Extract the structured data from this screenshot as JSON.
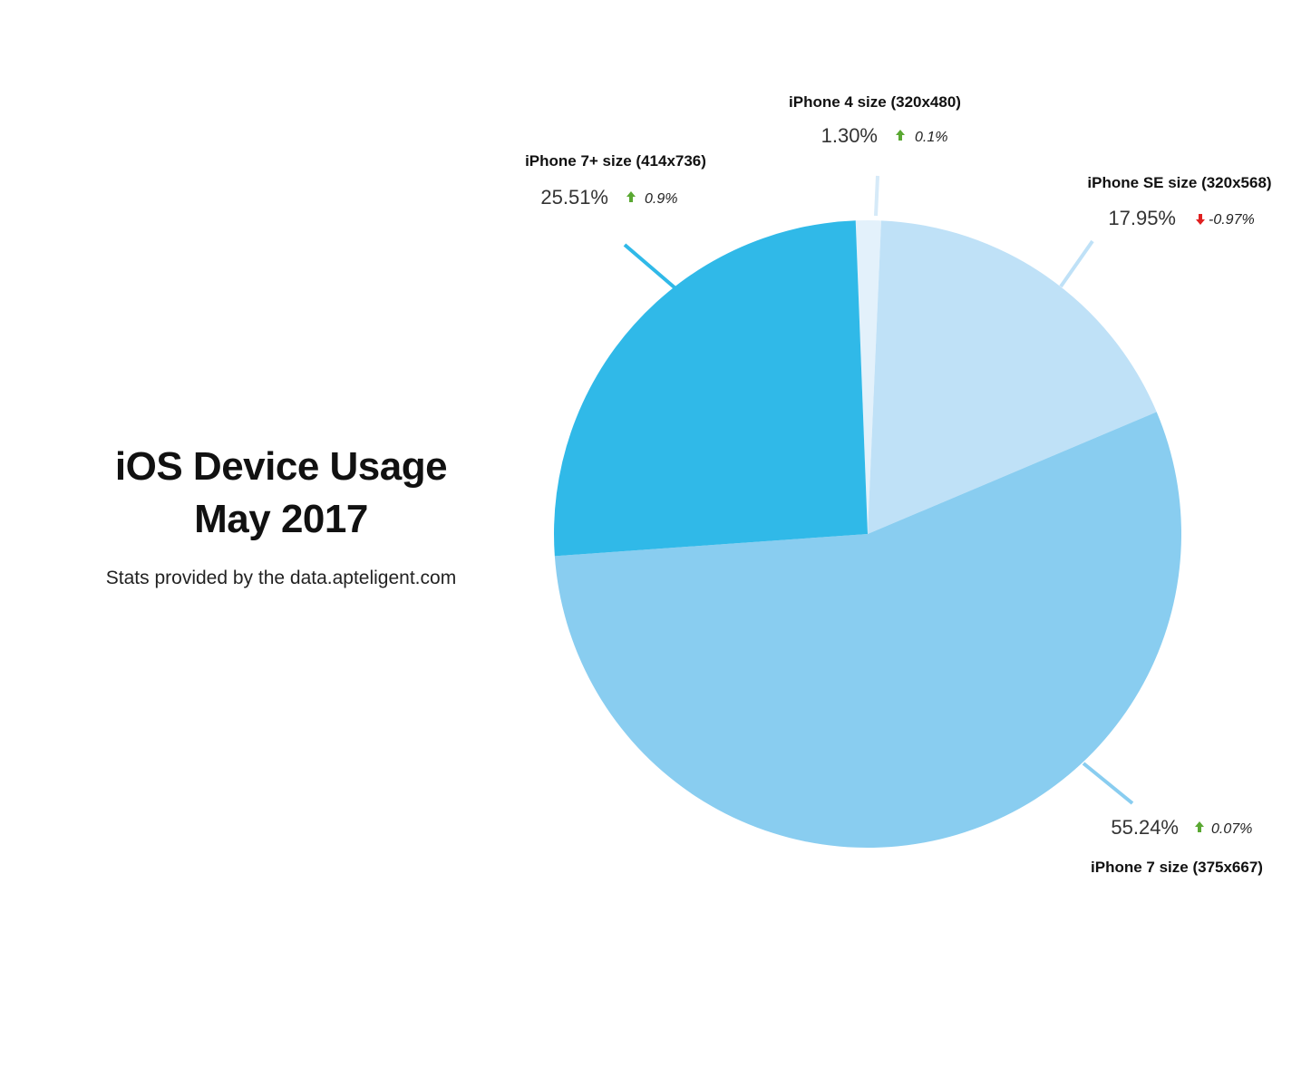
{
  "header": {
    "title_line1": "iOS Device Usage",
    "title_line2": "May 2017",
    "subtitle": "Stats provided by the data.apteligent.com"
  },
  "colors": {
    "up_arrow": "#5aa832",
    "down_arrow": "#e02020",
    "leader_default": "#bfe1f7"
  },
  "chart_data": {
    "type": "pie",
    "slices": [
      {
        "label": "iPhone 4 size (320x480)",
        "value": 1.3,
        "value_label": "1.30%",
        "change": "0.1%",
        "direction": "up",
        "color": "#e3f1fb"
      },
      {
        "label": "iPhone SE size (320x568)",
        "value": 17.95,
        "value_label": "17.95%",
        "change": "-0.97%",
        "direction": "down",
        "color": "#bfe1f7"
      },
      {
        "label": "iPhone 7 size (375x667)",
        "value": 55.24,
        "value_label": "55.24%",
        "change": "0.07%",
        "direction": "up",
        "color": "#89cdf0"
      },
      {
        "label": "iPhone 7+ size (414x736)",
        "value": 25.51,
        "value_label": "25.51%",
        "change": "0.9%",
        "direction": "up",
        "color": "#30b9e8"
      }
    ]
  }
}
